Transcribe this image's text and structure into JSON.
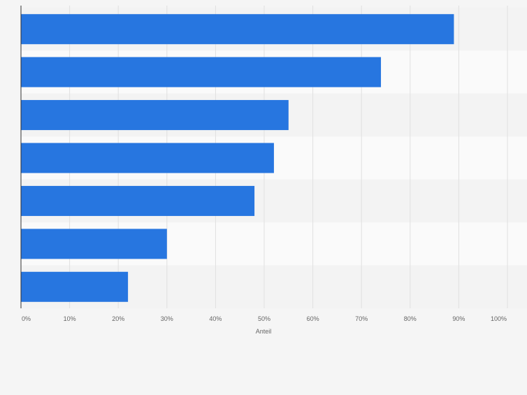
{
  "chart_data": {
    "type": "bar",
    "orientation": "horizontal",
    "categories": [
      "",
      "",
      "",
      "",
      "",
      "",
      ""
    ],
    "values": [
      89,
      74,
      55,
      52,
      48,
      30,
      22
    ],
    "title": "",
    "xlabel": "Anteil",
    "ylabel": "",
    "xlim": [
      0,
      100
    ],
    "ticks": [
      0,
      10,
      20,
      30,
      40,
      50,
      60,
      70,
      80,
      90,
      100
    ],
    "tick_labels": [
      "0%",
      "10%",
      "20%",
      "30%",
      "40%",
      "50%",
      "60%",
      "70%",
      "80%",
      "90%",
      "100%"
    ],
    "bar_color": "#2776e0",
    "grid": true
  },
  "colors": {
    "background": "#f5f5f5",
    "band_light": "#fafafa",
    "band_dark": "#f3f3f3",
    "grid": "#e0e0e0",
    "axis": "#333333",
    "text": "#666666"
  }
}
